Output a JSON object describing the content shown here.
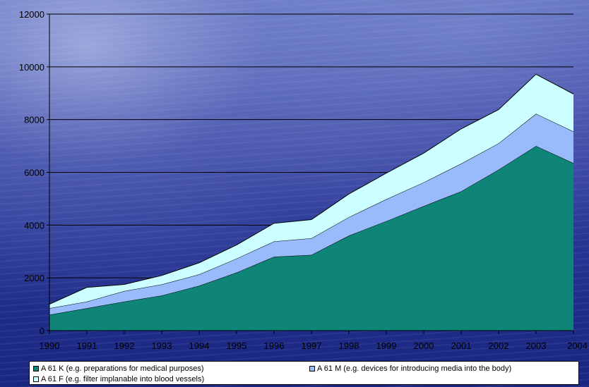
{
  "chart_data": {
    "type": "area",
    "stacked": true,
    "categories": [
      "1990",
      "1991",
      "1992",
      "1993",
      "1994",
      "1995",
      "1996",
      "1997",
      "1998",
      "1999",
      "2000",
      "2001",
      "2002",
      "2003",
      "2004"
    ],
    "series": [
      {
        "name": "A 61 K (e.g. preparations for medical purposes)",
        "color": "#0e8577",
        "values": [
          600,
          850,
          1100,
          1330,
          1700,
          2200,
          2800,
          2870,
          3600,
          4150,
          4720,
          5280,
          6100,
          7000,
          6350
        ]
      },
      {
        "name": "A 61 M (e.g. devices for introducing media into the body)",
        "color": "#99bbfb",
        "values": [
          250,
          250,
          400,
          420,
          430,
          530,
          580,
          630,
          700,
          830,
          900,
          1050,
          1000,
          1220,
          1200
        ]
      },
      {
        "name": "A 61 F (e.g. filter implanable into blood vessels)",
        "color": "#ccffff",
        "values": [
          150,
          540,
          250,
          340,
          440,
          520,
          690,
          710,
          880,
          990,
          1110,
          1320,
          1280,
          1500,
          1420
        ]
      }
    ],
    "ylim": [
      0,
      12000
    ],
    "yticks": [
      "0",
      "2000",
      "4000",
      "6000",
      "8000",
      "10000",
      "12000"
    ],
    "grid": true,
    "legend_position": "bottom"
  }
}
